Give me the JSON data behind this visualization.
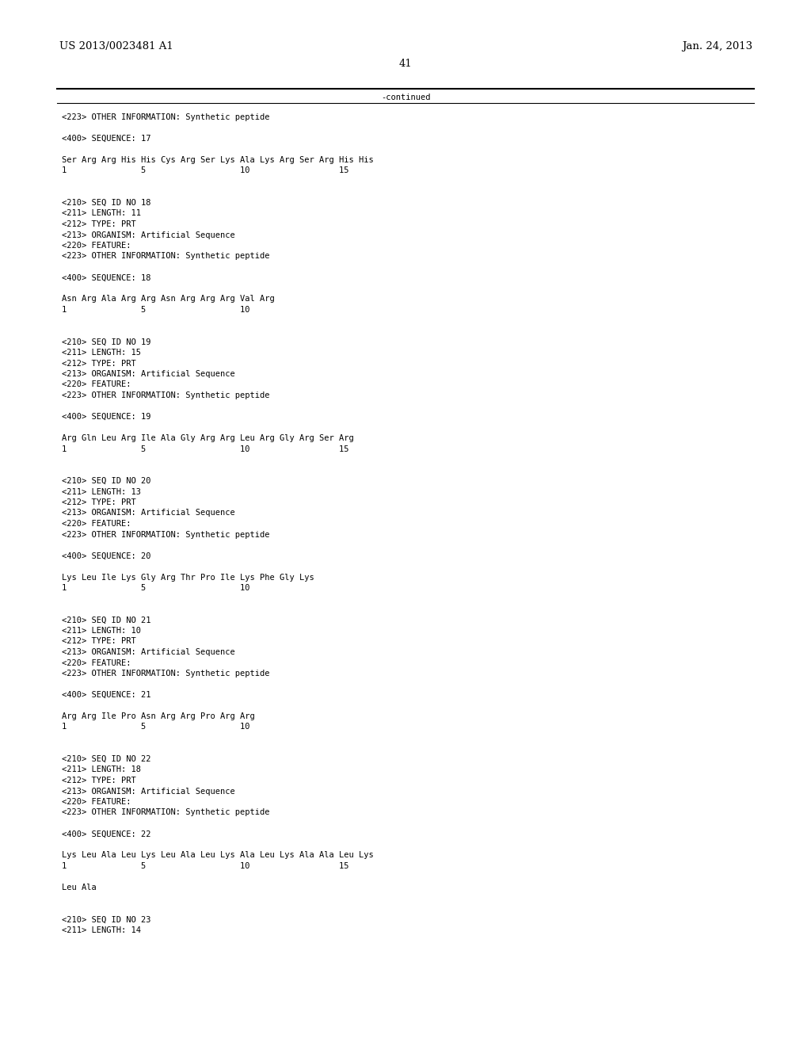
{
  "header_left": "US 2013/0023481 A1",
  "header_right": "Jan. 24, 2013",
  "page_number": "41",
  "continued_text": "-continued",
  "background_color": "#ffffff",
  "text_color": "#000000",
  "mono_font_size": 7.5,
  "header_font_size": 9.5,
  "page_num_font_size": 9.5,
  "lines": [
    {
      "text": "<223> OTHER INFORMATION: Synthetic peptide"
    },
    {
      "text": ""
    },
    {
      "text": "<400> SEQUENCE: 17"
    },
    {
      "text": ""
    },
    {
      "text": "Ser Arg Arg His His Cys Arg Ser Lys Ala Lys Arg Ser Arg His His"
    },
    {
      "text": "1               5                   10                  15"
    },
    {
      "text": ""
    },
    {
      "text": ""
    },
    {
      "text": "<210> SEQ ID NO 18"
    },
    {
      "text": "<211> LENGTH: 11"
    },
    {
      "text": "<212> TYPE: PRT"
    },
    {
      "text": "<213> ORGANISM: Artificial Sequence"
    },
    {
      "text": "<220> FEATURE:"
    },
    {
      "text": "<223> OTHER INFORMATION: Synthetic peptide"
    },
    {
      "text": ""
    },
    {
      "text": "<400> SEQUENCE: 18"
    },
    {
      "text": ""
    },
    {
      "text": "Asn Arg Ala Arg Arg Asn Arg Arg Arg Val Arg"
    },
    {
      "text": "1               5                   10"
    },
    {
      "text": ""
    },
    {
      "text": ""
    },
    {
      "text": "<210> SEQ ID NO 19"
    },
    {
      "text": "<211> LENGTH: 15"
    },
    {
      "text": "<212> TYPE: PRT"
    },
    {
      "text": "<213> ORGANISM: Artificial Sequence"
    },
    {
      "text": "<220> FEATURE:"
    },
    {
      "text": "<223> OTHER INFORMATION: Synthetic peptide"
    },
    {
      "text": ""
    },
    {
      "text": "<400> SEQUENCE: 19"
    },
    {
      "text": ""
    },
    {
      "text": "Arg Gln Leu Arg Ile Ala Gly Arg Arg Leu Arg Gly Arg Ser Arg"
    },
    {
      "text": "1               5                   10                  15"
    },
    {
      "text": ""
    },
    {
      "text": ""
    },
    {
      "text": "<210> SEQ ID NO 20"
    },
    {
      "text": "<211> LENGTH: 13"
    },
    {
      "text": "<212> TYPE: PRT"
    },
    {
      "text": "<213> ORGANISM: Artificial Sequence"
    },
    {
      "text": "<220> FEATURE:"
    },
    {
      "text": "<223> OTHER INFORMATION: Synthetic peptide"
    },
    {
      "text": ""
    },
    {
      "text": "<400> SEQUENCE: 20"
    },
    {
      "text": ""
    },
    {
      "text": "Lys Leu Ile Lys Gly Arg Thr Pro Ile Lys Phe Gly Lys"
    },
    {
      "text": "1               5                   10"
    },
    {
      "text": ""
    },
    {
      "text": ""
    },
    {
      "text": "<210> SEQ ID NO 21"
    },
    {
      "text": "<211> LENGTH: 10"
    },
    {
      "text": "<212> TYPE: PRT"
    },
    {
      "text": "<213> ORGANISM: Artificial Sequence"
    },
    {
      "text": "<220> FEATURE:"
    },
    {
      "text": "<223> OTHER INFORMATION: Synthetic peptide"
    },
    {
      "text": ""
    },
    {
      "text": "<400> SEQUENCE: 21"
    },
    {
      "text": ""
    },
    {
      "text": "Arg Arg Ile Pro Asn Arg Arg Pro Arg Arg"
    },
    {
      "text": "1               5                   10"
    },
    {
      "text": ""
    },
    {
      "text": ""
    },
    {
      "text": "<210> SEQ ID NO 22"
    },
    {
      "text": "<211> LENGTH: 18"
    },
    {
      "text": "<212> TYPE: PRT"
    },
    {
      "text": "<213> ORGANISM: Artificial Sequence"
    },
    {
      "text": "<220> FEATURE:"
    },
    {
      "text": "<223> OTHER INFORMATION: Synthetic peptide"
    },
    {
      "text": ""
    },
    {
      "text": "<400> SEQUENCE: 22"
    },
    {
      "text": ""
    },
    {
      "text": "Lys Leu Ala Leu Lys Leu Ala Leu Lys Ala Leu Lys Ala Ala Leu Lys"
    },
    {
      "text": "1               5                   10                  15"
    },
    {
      "text": ""
    },
    {
      "text": "Leu Ala"
    },
    {
      "text": ""
    },
    {
      "text": ""
    },
    {
      "text": "<210> SEQ ID NO 23"
    },
    {
      "text": "<211> LENGTH: 14"
    }
  ]
}
